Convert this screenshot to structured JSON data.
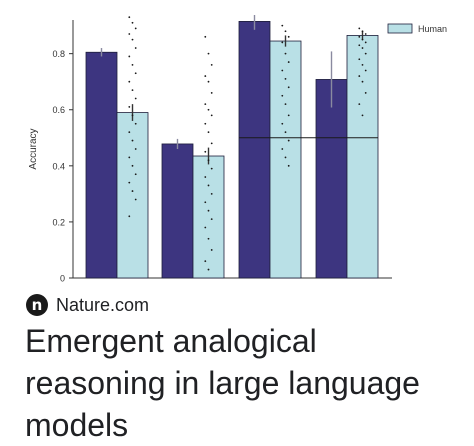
{
  "chart_data": {
    "type": "bar",
    "ylabel": "Accuracy",
    "xlabel": "",
    "ylim": [
      0,
      0.92
    ],
    "yticks": [
      "0",
      "0.2",
      "0.4",
      "0.6",
      "0.8"
    ],
    "ytick_values": [
      0,
      0.2,
      0.4,
      0.6,
      0.8
    ],
    "legend": {
      "placement": "top-right",
      "entries": [
        "Human"
      ]
    },
    "chance_level": 0.5,
    "groups": 4,
    "series": [
      {
        "values": [
          0.805,
          0.478,
          0.915,
          0.708
        ],
        "errors": [
          0.015,
          0.018,
          0.03,
          0.1
        ],
        "color": "#3d3580"
      },
      {
        "name": "Human",
        "values": [
          0.59,
          0.435,
          0.845,
          0.865
        ],
        "errors": [
          0.03,
          0.03,
          0.02,
          0.015
        ],
        "color": "#b9e0e6"
      }
    ],
    "human_points": [
      [
        0.93,
        0.91,
        0.89,
        0.87,
        0.85,
        0.82,
        0.79,
        0.76,
        0.73,
        0.7,
        0.67,
        0.64,
        0.61,
        0.58,
        0.55,
        0.52,
        0.49,
        0.46,
        0.43,
        0.4,
        0.37,
        0.34,
        0.31,
        0.28,
        0.22
      ],
      [
        0.86,
        0.8,
        0.76,
        0.72,
        0.7,
        0.66,
        0.62,
        0.6,
        0.58,
        0.55,
        0.52,
        0.48,
        0.45,
        0.42,
        0.39,
        0.36,
        0.33,
        0.3,
        0.27,
        0.24,
        0.21,
        0.18,
        0.14,
        0.1,
        0.06,
        0.03
      ],
      [
        0.9,
        0.88,
        0.86,
        0.84,
        0.8,
        0.77,
        0.74,
        0.71,
        0.68,
        0.65,
        0.62,
        0.58,
        0.55,
        0.52,
        0.49,
        0.46,
        0.43,
        0.4
      ],
      [
        0.89,
        0.88,
        0.87,
        0.86,
        0.85,
        0.84,
        0.83,
        0.82,
        0.8,
        0.78,
        0.76,
        0.74,
        0.72,
        0.7,
        0.66,
        0.62,
        0.58
      ]
    ]
  },
  "source": {
    "logo_letter": "n",
    "name": "Nature.com"
  },
  "headline": "Emergent analogical reasoning in large language models",
  "colors": {
    "model_bar": "#3d3580",
    "human_bar": "#b9e0e6",
    "axis": "#333333",
    "dots": "#1a1a1a"
  },
  "icons": {
    "source_logo": "nature-n-logo-icon"
  }
}
